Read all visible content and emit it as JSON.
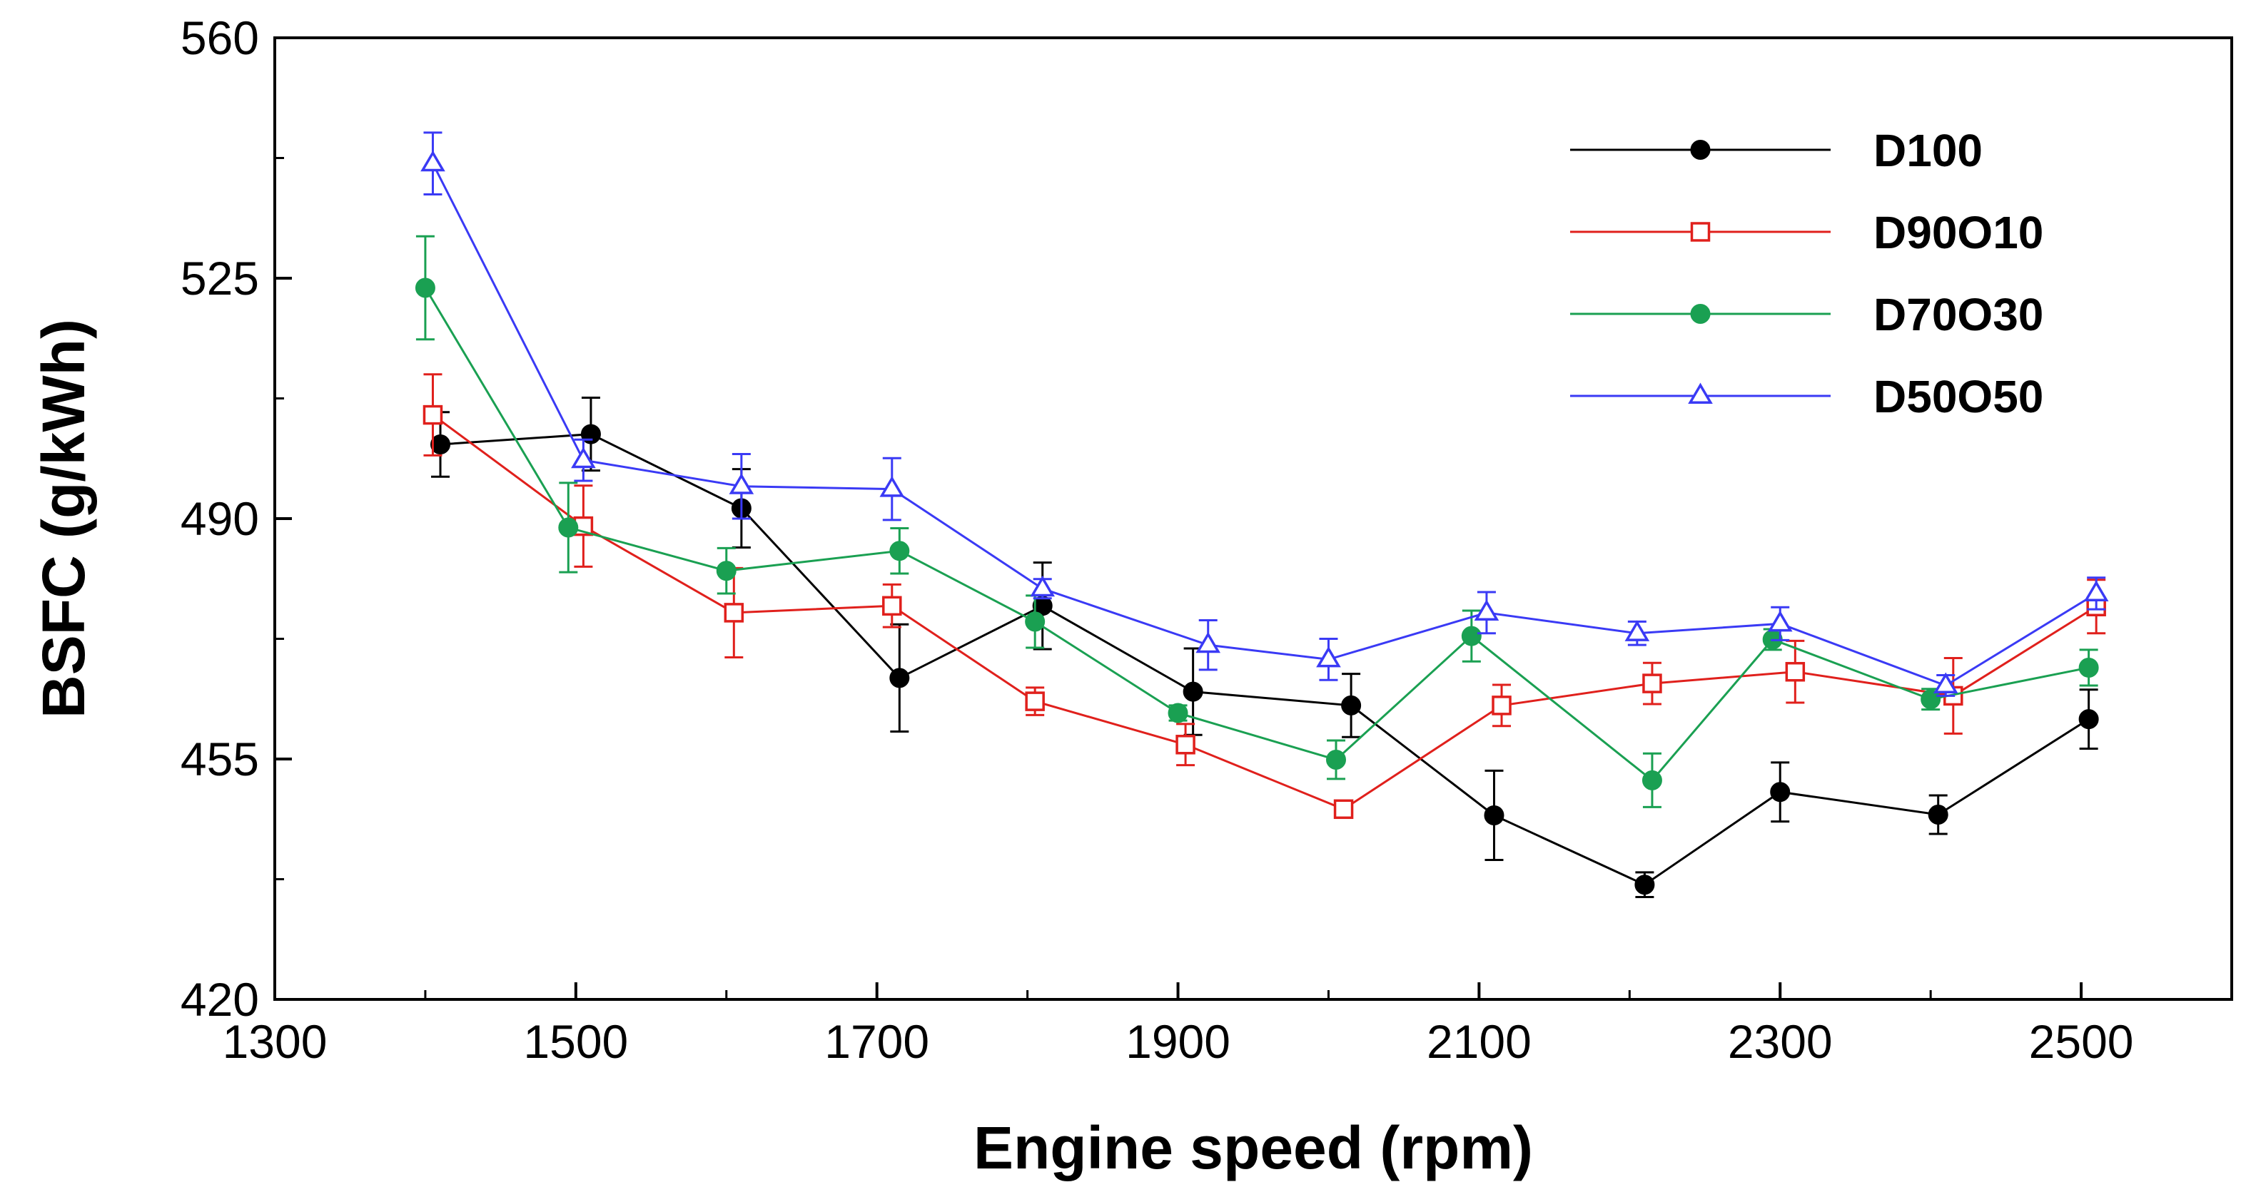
{
  "chart_data": {
    "type": "line",
    "title": "",
    "xlabel": "Engine speed (rpm)",
    "ylabel": "BSFC (g/kWh)",
    "xlim": [
      1300,
      2600
    ],
    "ylim": [
      420,
      560
    ],
    "xticks": [
      1300,
      1500,
      1700,
      1900,
      2100,
      2300,
      2500
    ],
    "yticks": [
      420,
      455,
      490,
      525,
      560
    ],
    "xtick_labels": [
      "1300",
      "1500",
      "1700",
      "1900",
      "2100",
      "2300",
      "2500"
    ],
    "ytick_labels": [
      "420",
      "455",
      "490",
      "525",
      "560"
    ],
    "grid": false,
    "legend_position": "top-right",
    "series": [
      {
        "name": "D100",
        "color": "#000000",
        "marker": "filled-circle",
        "x": [
          1410,
          1510,
          1610,
          1715,
          1810,
          1910,
          2015,
          2110,
          2210,
          2300,
          2405,
          2505
        ],
        "y": [
          500.8,
          502.3,
          491.5,
          466.8,
          477.3,
          464.8,
          462.8,
          446.8,
          436.7,
          450.2,
          446.9,
          460.8
        ],
        "err": [
          4.7,
          5.3,
          5.7,
          7.8,
          6.3,
          6.3,
          4.6,
          6.5,
          1.8,
          4.3,
          2.8,
          4.3
        ]
      },
      {
        "name": "D90O10",
        "color": "#e0201c",
        "marker": "open-square",
        "x": [
          1405,
          1505,
          1605,
          1710,
          1805,
          1905,
          2010,
          2115,
          2215,
          2310,
          2415,
          2510
        ],
        "y": [
          505.1,
          488.9,
          476.3,
          477.3,
          463.4,
          457.1,
          447.7,
          462.8,
          466.0,
          467.7,
          464.2,
          477.2
        ],
        "err": [
          5.9,
          5.9,
          6.5,
          3.1,
          2.0,
          3.0,
          1.2,
          3.0,
          3.0,
          4.5,
          5.5,
          3.9
        ]
      },
      {
        "name": "D70O30",
        "color": "#1aa052",
        "marker": "filled-circle",
        "x": [
          1400,
          1495,
          1600,
          1715,
          1805,
          1900,
          2005,
          2095,
          2215,
          2295,
          2400,
          2505
        ],
        "y": [
          523.6,
          488.7,
          482.4,
          485.3,
          475.0,
          461.7,
          454.9,
          472.9,
          451.9,
          472.4,
          463.7,
          468.3
        ],
        "err": [
          7.5,
          6.5,
          3.3,
          3.3,
          3.8,
          1.1,
          2.8,
          3.7,
          3.9,
          1.5,
          1.5,
          2.6
        ]
      },
      {
        "name": "D50O50",
        "color": "#3a3af5",
        "marker": "open-triangle",
        "x": [
          1405,
          1505,
          1610,
          1710,
          1810,
          1920,
          2000,
          2105,
          2205,
          2300,
          2410,
          2510
        ],
        "y": [
          541.7,
          498.5,
          494.7,
          494.3,
          479.8,
          471.6,
          469.5,
          476.3,
          473.3,
          474.7,
          465.7,
          479.1
        ],
        "err": [
          4.5,
          3.0,
          4.7,
          4.5,
          1.4,
          3.6,
          3.0,
          3.0,
          1.7,
          2.4,
          1.5,
          2.3
        ]
      }
    ]
  }
}
